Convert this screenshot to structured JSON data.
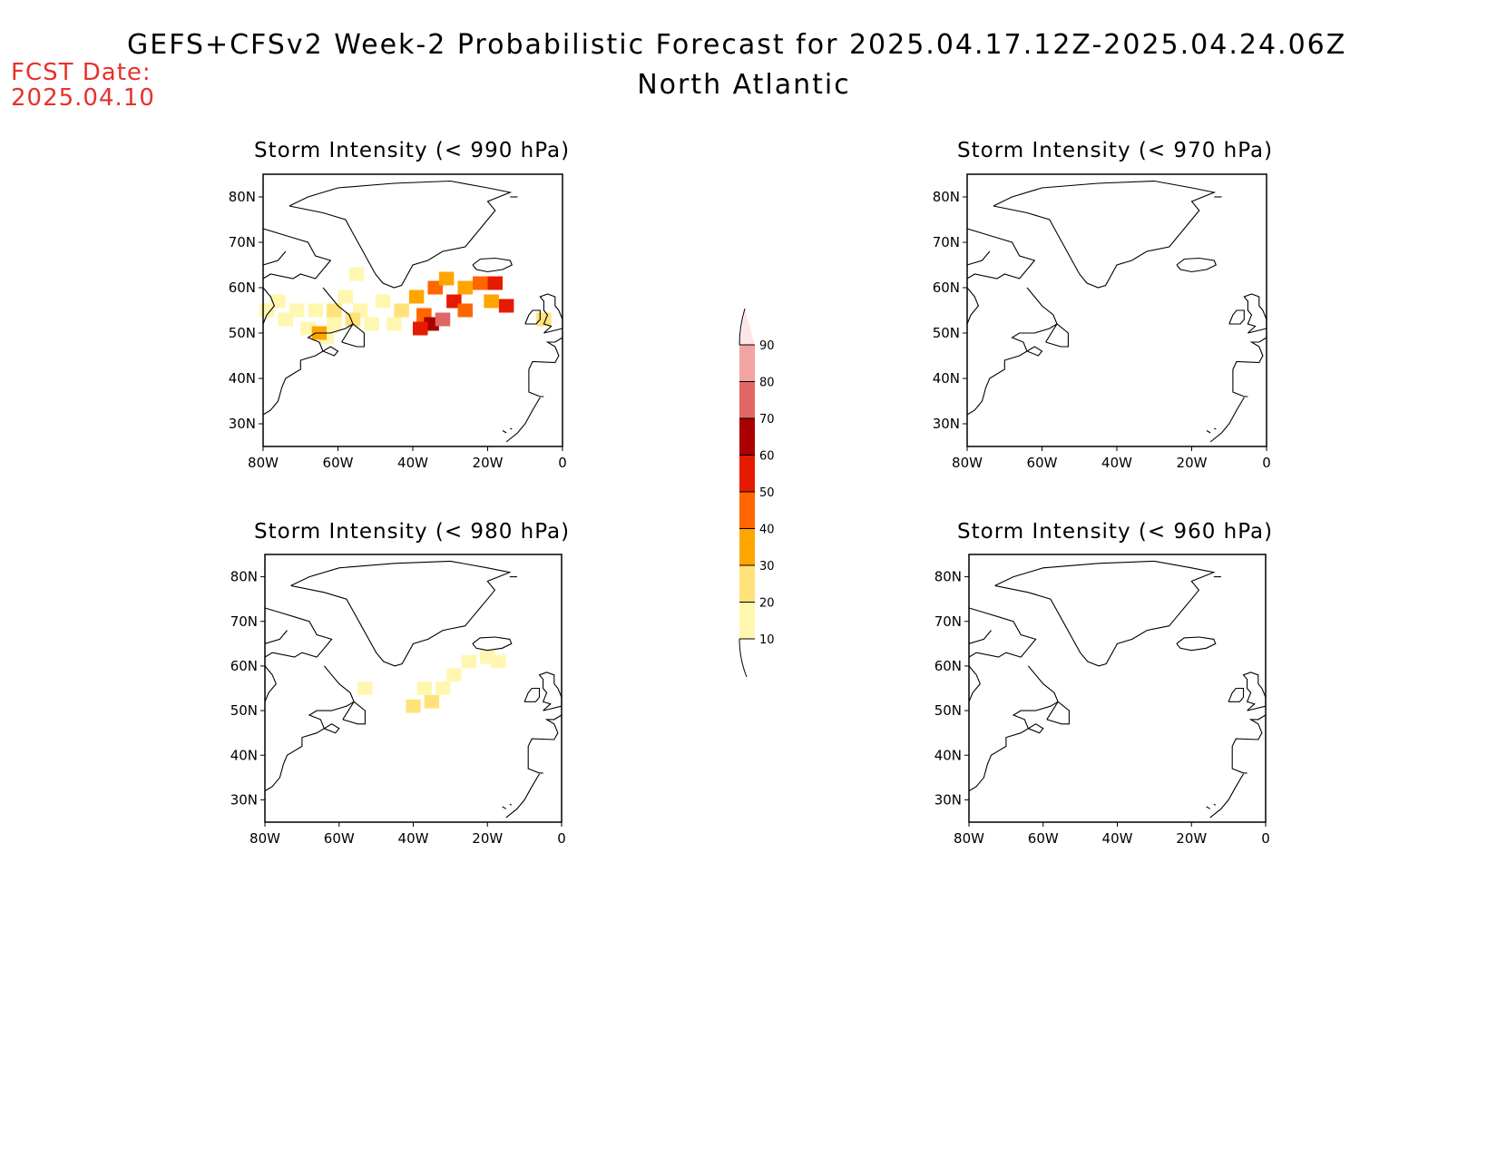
{
  "title": "GEFS+CFSv2 Week-2 Probabilistic Forecast for 2025.04.17.12Z-2025.04.24.06Z",
  "subtitle": "North Atlantic",
  "fcst_date": {
    "label": "FCST Date:",
    "value": "2025.04.10"
  },
  "panels": [
    {
      "id": "p990",
      "title": "Storm Intensity (< 990 hPa)"
    },
    {
      "id": "p970",
      "title": "Storm Intensity (< 970 hPa)"
    },
    {
      "id": "p980",
      "title": "Storm Intensity (< 980 hPa)"
    },
    {
      "id": "p960",
      "title": "Storm Intensity (< 960 hPa)"
    }
  ],
  "axes": {
    "lon_labels": [
      "80W",
      "60W",
      "40W",
      "20W",
      "0"
    ],
    "lat_labels": [
      "80N",
      "70N",
      "60N",
      "50N",
      "40N",
      "30N"
    ],
    "lon_range": [
      -80,
      0
    ],
    "lat_range": [
      25,
      85
    ]
  },
  "colorbar": {
    "levels": [
      10,
      20,
      30,
      40,
      50,
      60,
      70,
      80,
      90
    ],
    "colors": [
      "#fff7b0",
      "#ffe27a",
      "#ffa500",
      "#ff6600",
      "#e61a00",
      "#aa0000",
      "#e06666",
      "#f2a3a3",
      "#ffe6e6"
    ]
  },
  "chart_data": {
    "type": "heatmap",
    "description_units": "probability (%) by lon/lat",
    "p990": [
      {
        "lon": -79,
        "lat": 55,
        "v": 15
      },
      {
        "lon": -76,
        "lat": 57,
        "v": 15
      },
      {
        "lon": -74,
        "lat": 53,
        "v": 15
      },
      {
        "lon": -71,
        "lat": 55,
        "v": 15
      },
      {
        "lon": -68,
        "lat": 51,
        "v": 15
      },
      {
        "lon": -66,
        "lat": 55,
        "v": 15
      },
      {
        "lon": -63,
        "lat": 49,
        "v": 15
      },
      {
        "lon": -61,
        "lat": 52,
        "v": 15
      },
      {
        "lon": -58,
        "lat": 58,
        "v": 15
      },
      {
        "lon": -55,
        "lat": 63,
        "v": 15
      },
      {
        "lon": -54,
        "lat": 55,
        "v": 15
      },
      {
        "lon": -51,
        "lat": 52,
        "v": 15
      },
      {
        "lon": -48,
        "lat": 57,
        "v": 15
      },
      {
        "lon": -45,
        "lat": 52,
        "v": 15
      },
      {
        "lon": -43,
        "lat": 55,
        "v": 25
      },
      {
        "lon": -65,
        "lat": 50,
        "v": 35
      },
      {
        "lon": -61,
        "lat": 55,
        "v": 25
      },
      {
        "lon": -56,
        "lat": 53,
        "v": 25
      },
      {
        "lon": -39,
        "lat": 58,
        "v": 35
      },
      {
        "lon": -37,
        "lat": 54,
        "v": 45
      },
      {
        "lon": -35,
        "lat": 52,
        "v": 65
      },
      {
        "lon": -38,
        "lat": 51,
        "v": 55
      },
      {
        "lon": -32,
        "lat": 53,
        "v": 75
      },
      {
        "lon": -34,
        "lat": 60,
        "v": 45
      },
      {
        "lon": -31,
        "lat": 62,
        "v": 35
      },
      {
        "lon": -29,
        "lat": 57,
        "v": 55
      },
      {
        "lon": -26,
        "lat": 55,
        "v": 45
      },
      {
        "lon": -26,
        "lat": 60,
        "v": 35
      },
      {
        "lon": -22,
        "lat": 61,
        "v": 45
      },
      {
        "lon": -18,
        "lat": 61,
        "v": 55
      },
      {
        "lon": -15,
        "lat": 56,
        "v": 55
      },
      {
        "lon": -19,
        "lat": 57,
        "v": 35
      },
      {
        "lon": -5,
        "lat": 53,
        "v": 25
      }
    ],
    "p980": [
      {
        "lon": -40,
        "lat": 51,
        "v": 25
      },
      {
        "lon": -37,
        "lat": 55,
        "v": 15
      },
      {
        "lon": -35,
        "lat": 52,
        "v": 25
      },
      {
        "lon": -32,
        "lat": 55,
        "v": 15
      },
      {
        "lon": -29,
        "lat": 58,
        "v": 15
      },
      {
        "lon": -25,
        "lat": 61,
        "v": 15
      },
      {
        "lon": -20,
        "lat": 62,
        "v": 15
      },
      {
        "lon": -17,
        "lat": 61,
        "v": 15
      },
      {
        "lon": -53,
        "lat": 55,
        "v": 15
      }
    ],
    "p970": [],
    "p960": []
  }
}
